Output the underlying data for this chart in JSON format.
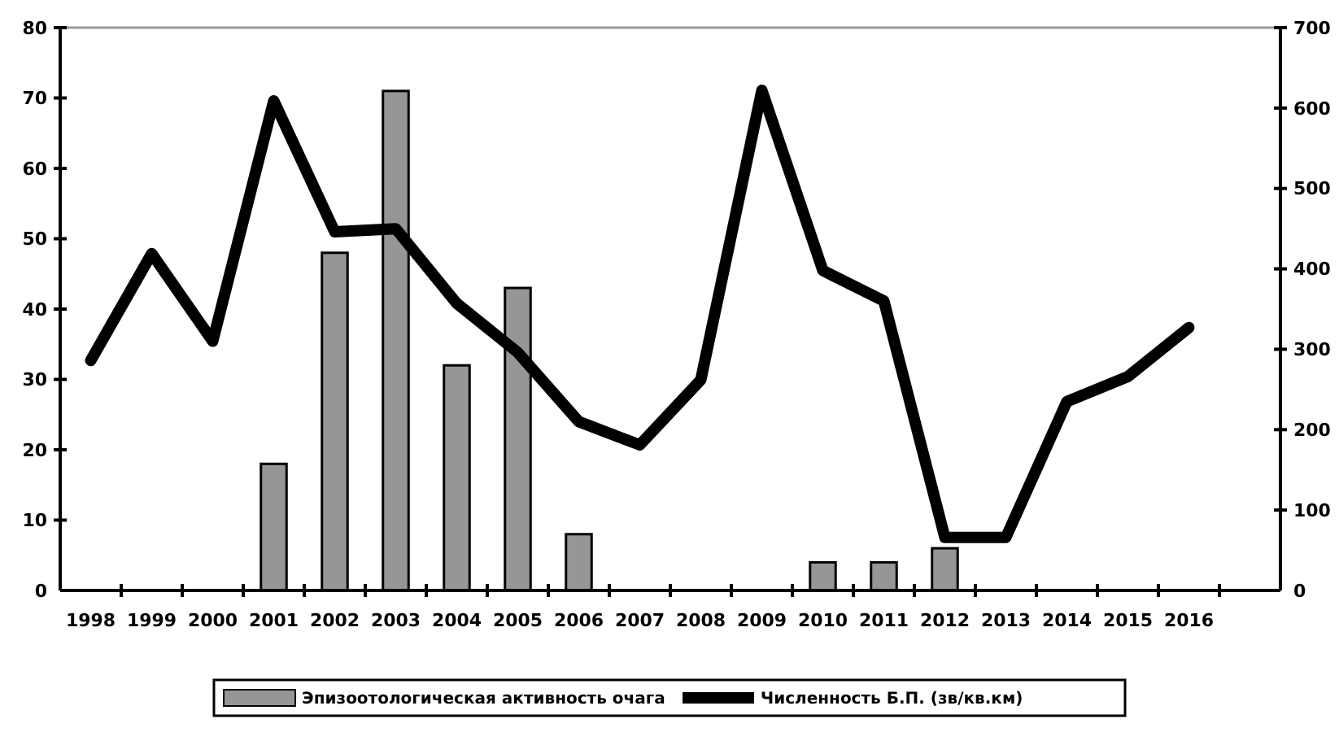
{
  "chart_data": {
    "type": "bar",
    "categories": [
      "1998",
      "1999",
      "2000",
      "2001",
      "2002",
      "2003",
      "2004",
      "2005",
      "2006",
      "2007",
      "2008",
      "2009",
      "2010",
      "2011",
      "2012",
      "2013",
      "2014",
      "2015",
      "2016",
      null
    ],
    "series": [
      {
        "name": "Эпизоотологическая активность очага",
        "color": "#969696",
        "values": [
          null,
          null,
          null,
          18,
          48,
          71,
          32,
          43,
          8,
          null,
          null,
          null,
          4,
          4,
          6,
          null,
          null,
          null,
          null,
          null
        ]
      },
      {
        "name": "Численность Б.П. (зв/кв.км)",
        "type": "line",
        "axis": "y2",
        "color": "#000000",
        "values": [
          286,
          419,
          310,
          609,
          446,
          450,
          357,
          296,
          210,
          181,
          262,
          622,
          398,
          360,
          66,
          66,
          235,
          266,
          327,
          null
        ]
      }
    ],
    "ylim": [
      0,
      80
    ],
    "yticks": [
      0,
      10,
      20,
      30,
      40,
      50,
      60,
      70,
      80
    ],
    "y2lim": [
      0,
      700
    ],
    "y2ticks": [
      0,
      100,
      200,
      300,
      400,
      500,
      600,
      700
    ],
    "grid": false,
    "legend": "bottom",
    "marker": "none",
    "line_style": "solid"
  }
}
